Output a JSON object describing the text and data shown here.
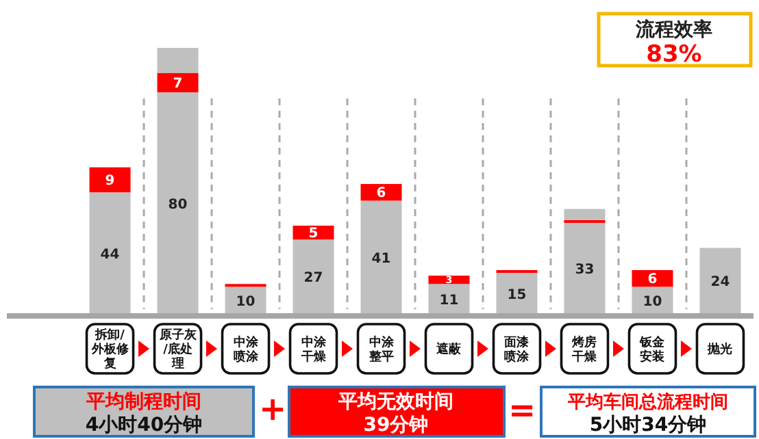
{
  "chart_data": {
    "type": "bar",
    "stacked": true,
    "categories": [
      "拆卸/外板修复",
      "原子灰/底处理",
      "中涂喷涂",
      "中涂干燥",
      "中涂整平",
      "遮蔽",
      "面漆喷涂",
      "烤房干燥",
      "钣金安装",
      "抛光"
    ],
    "series": [
      {
        "color": "#c0c0c0",
        "values": [
          44,
          80,
          10,
          27,
          41,
          11,
          15,
          33,
          10,
          24
        ],
        "value_labels": [
          "44",
          "80",
          "10",
          "27",
          "41",
          "11",
          "15",
          "33",
          "10",
          "24"
        ]
      },
      {
        "color": "#ff0000",
        "values": [
          9,
          7,
          1,
          5,
          6,
          3,
          1,
          1,
          6,
          null
        ],
        "value_labels": [
          "9",
          "7",
          null,
          "5",
          "6",
          "3",
          null,
          null,
          "6",
          null
        ]
      },
      {
        "color": "#c0c0c0",
        "values": [
          null,
          9,
          null,
          null,
          null,
          null,
          null,
          4,
          null,
          null
        ],
        "value_labels": [
          null,
          null,
          null,
          null,
          null,
          null,
          null,
          null,
          null,
          null
        ]
      }
    ],
    "tick_labels": "x",
    "annotations": [
      "流程效率",
      "83%",
      "平均制程时间",
      "4小时40分钟",
      "+",
      "平均无效时间",
      "39分钟",
      "=",
      "平均车间总流程时间",
      "5小时34分钟"
    ]
  }
}
